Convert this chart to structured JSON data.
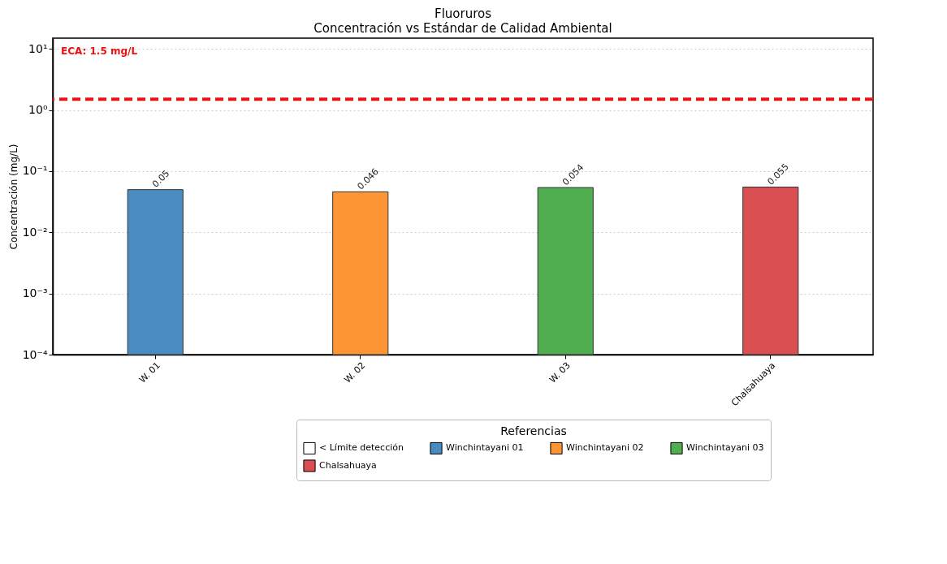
{
  "chart_data": {
    "type": "bar",
    "title": "Fluoruros",
    "subtitle": "Concentración vs Estándar de Calidad Ambiental",
    "ylabel": "Concentración (mg/L)",
    "legend_title": "Referencias",
    "categories": [
      "W. 01",
      "W. 02",
      "W. 03",
      "Chalsahuaya"
    ],
    "series": [
      {
        "name": "< Límite detección",
        "color": "#ffffff",
        "values": [
          null,
          null,
          null,
          null
        ]
      },
      {
        "name": "Winchintayani 01",
        "color": "#4a8cc1",
        "values": [
          0.05,
          null,
          null,
          null
        ]
      },
      {
        "name": "Winchintayani 02",
        "color": "#fd9535",
        "values": [
          null,
          0.046,
          null,
          null
        ]
      },
      {
        "name": "Winchintayani 03",
        "color": "#50ae50",
        "values": [
          null,
          null,
          0.054,
          null
        ]
      },
      {
        "name": "Chalsahuaya",
        "color": "#d94f52",
        "values": [
          null,
          null,
          null,
          0.055
        ]
      }
    ],
    "log": true,
    "ylim": [
      0.0001,
      15
    ],
    "yticks": [
      {
        "value": 0.0001,
        "label": "10⁻⁴"
      },
      {
        "value": 0.001,
        "label": "10⁻³"
      },
      {
        "value": 0.01,
        "label": "10⁻²"
      },
      {
        "value": 0.1,
        "label": "10⁻¹"
      },
      {
        "value": 1,
        "label": "10⁰"
      },
      {
        "value": 10,
        "label": "10¹"
      }
    ],
    "grid": "y",
    "data_labels": true,
    "legend": "bottom",
    "ref_lines": [
      {
        "axis": "y",
        "value": 1.5,
        "label": "ECA: 1.5 mg/L",
        "color": "#ee1111",
        "line_style": "dashed"
      }
    ]
  }
}
